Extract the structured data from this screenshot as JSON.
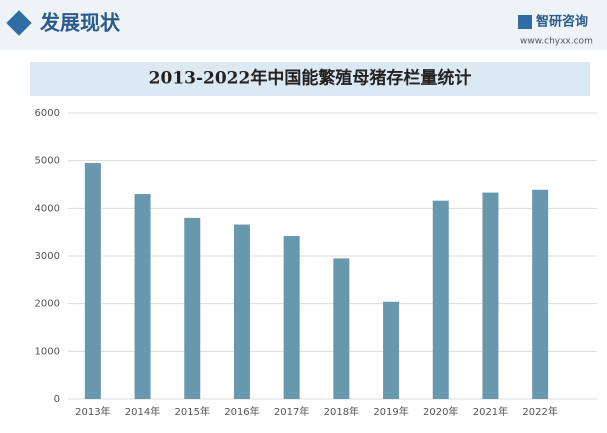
{
  "header": {
    "title": "发展现状"
  },
  "logo": {
    "name": "智研咨询",
    "url": "www.chyxx.com"
  },
  "chart_data": {
    "type": "bar",
    "title": "2013-2022年中国能繁殖母猪存栏量统计",
    "categories": [
      "2013年",
      "2014年",
      "2015年",
      "2016年",
      "2017年",
      "2018年",
      "2019年",
      "2020年",
      "2021年",
      "2022年"
    ],
    "values": [
      4950,
      4300,
      3800,
      3660,
      3420,
      2950,
      2040,
      4160,
      4330,
      4390
    ],
    "color": "#6898ad",
    "ylim": [
      0,
      6000
    ],
    "yticks": [
      0,
      1000,
      2000,
      3000,
      4000,
      5000,
      6000
    ],
    "grid": true
  }
}
